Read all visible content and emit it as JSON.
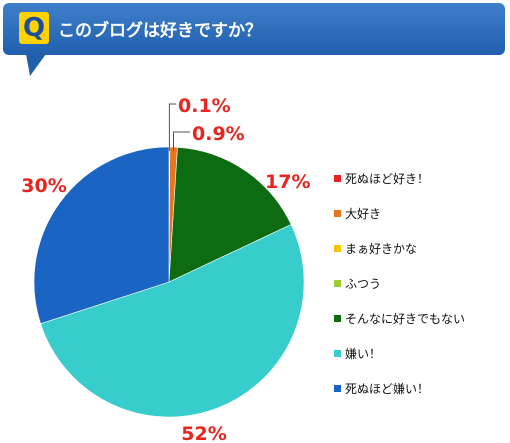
{
  "header": {
    "badge": "Q",
    "title": "このブログは好きですか？"
  },
  "chart_data": {
    "type": "pie",
    "title": "このブログは好きですか？",
    "labels": [
      "死ぬほど好き！",
      "大好き",
      "まぁ好きかな",
      "ふつう",
      "そんなに好きでもない",
      "嫌い！",
      "死ぬほど嫌い！"
    ],
    "values": [
      0.1,
      0.9,
      0,
      0,
      17,
      52,
      30
    ],
    "data_labels": [
      "0.1%",
      "0.9%",
      "",
      "",
      "17%",
      "52%",
      "30%"
    ],
    "colors": [
      "#e8221e",
      "#e8761c",
      "#f5c400",
      "#9ccc2e",
      "#0d6b12",
      "#38cdcd",
      "#1a64c4"
    ],
    "legend_position": "right",
    "start_angle_deg": 0,
    "direction": "clockwise"
  }
}
